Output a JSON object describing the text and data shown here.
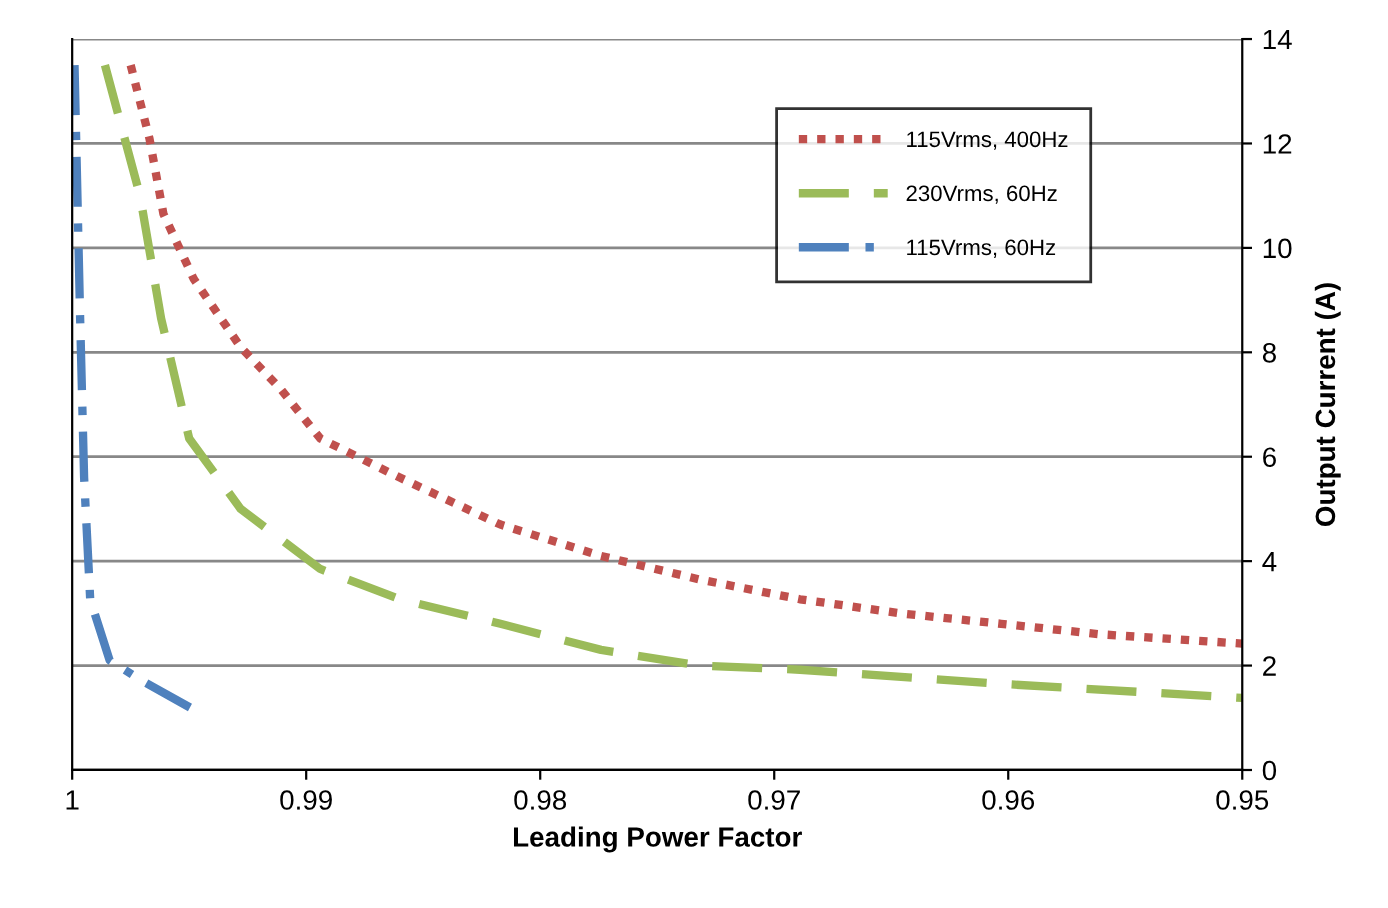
{
  "chart_data": {
    "type": "line",
    "xlabel": "Leading Power Factor",
    "ylabel": "Output Current (A)",
    "xlim": [
      1,
      0.95
    ],
    "xticks": [
      1,
      0.99,
      0.98,
      0.97,
      0.96,
      0.95
    ],
    "ylim": [
      0,
      14
    ],
    "yticks": [
      0,
      2,
      4,
      6,
      8,
      10,
      12,
      14
    ],
    "grid": "y",
    "legend": "top right",
    "marker": "none",
    "series": [
      {
        "name": "115Vrms, 400Hz",
        "color": "#c0504d",
        "line_style": "dotted",
        "x": [
          0.9975,
          0.9967,
          0.9961,
          0.9948,
          0.9928,
          0.9911,
          0.9894,
          0.986,
          0.9817,
          0.9774,
          0.9732,
          0.9689,
          0.9646,
          0.9603,
          0.9561,
          0.95
        ],
        "values": [
          13.5,
          12.1,
          10.65,
          9.4,
          8.1,
          7.3,
          6.35,
          5.6,
          4.7,
          4.1,
          3.65,
          3.27,
          3.0,
          2.8,
          2.6,
          2.42
        ]
      },
      {
        "name": "230Vrms, 60Hz",
        "color": "#9bbb59",
        "line_style": "dashed",
        "x": [
          0.9986,
          0.9971,
          0.9962,
          0.995,
          0.9928,
          0.9894,
          0.986,
          0.9817,
          0.9774,
          0.9732,
          0.9689,
          0.9603,
          0.95
        ],
        "values": [
          13.5,
          11,
          8.65,
          6.35,
          5.0,
          3.85,
          3.27,
          2.8,
          2.3,
          2.0,
          1.92,
          1.65,
          1.38
        ]
      },
      {
        "name": "115Vrms, 60Hz",
        "color": "#4f81bd",
        "line_style": "dashdot",
        "x": [
          0.9999,
          0.99966,
          0.99949,
          0.99923,
          0.9984,
          0.9971,
          0.9945
        ],
        "values": [
          13.5,
          8.65,
          5.6,
          3.27,
          2.1,
          1.73,
          1.08
        ]
      }
    ]
  }
}
